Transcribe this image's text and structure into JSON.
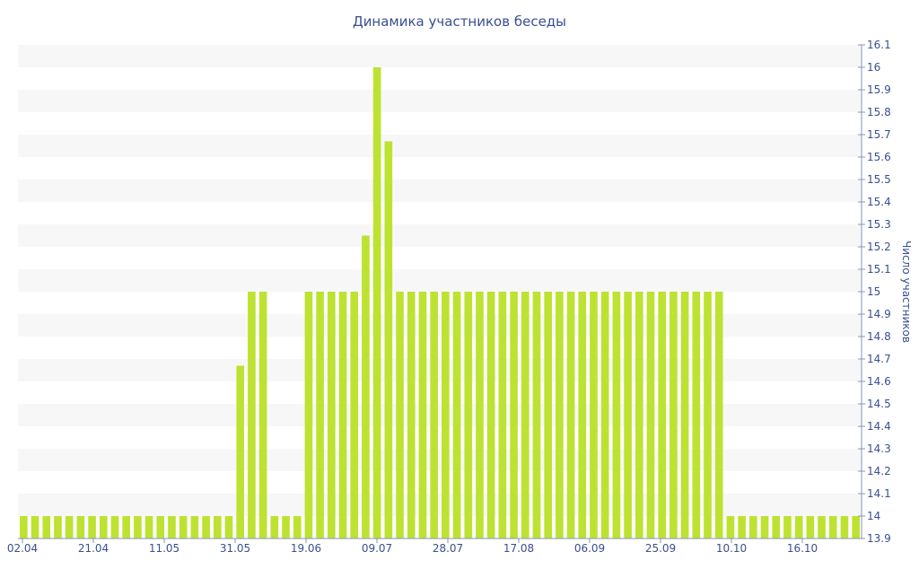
{
  "chart_data": {
    "type": "bar",
    "title": "Динамика участников беседы",
    "ylabel": "Число участников",
    "xlabel": "",
    "ylim": [
      13.9,
      16.1
    ],
    "yticks": [
      "13.9",
      "14",
      "14.1",
      "14.2",
      "14.3",
      "14.4",
      "14.5",
      "14.6",
      "14.7",
      "14.8",
      "14.9",
      "15",
      "15.1",
      "15.2",
      "15.3",
      "15.4",
      "15.5",
      "15.6",
      "15.7",
      "15.8",
      "15.9",
      "16",
      "16.1"
    ],
    "xticks": [
      "02.04",
      "21.04",
      "11.05",
      "31.05",
      "19.06",
      "09.07",
      "28.07",
      "17.08",
      "06.09",
      "25.09",
      "10.10",
      "16.10"
    ],
    "y_axis_position": "right",
    "grid": "horizontal bands",
    "values": [
      14,
      14,
      14,
      14,
      14,
      14,
      14,
      14,
      14,
      14,
      14,
      14,
      14,
      14,
      14,
      14,
      14,
      14,
      14,
      14.67,
      15,
      15,
      14,
      14,
      14,
      15,
      15,
      15,
      15,
      15,
      15.25,
      16,
      15.67,
      15,
      15,
      15,
      15,
      15,
      15,
      15,
      15,
      15,
      15,
      15,
      15,
      15,
      15,
      15,
      15,
      15,
      15,
      15,
      15,
      15,
      15,
      15,
      15,
      15,
      15,
      15,
      15,
      15,
      14,
      14,
      14,
      14,
      14,
      14,
      14,
      14,
      14,
      14,
      14,
      14
    ],
    "colors": {
      "bar": "#bde232",
      "text": "#3a4f8f",
      "band": "#f7f7f7",
      "axis": "#8a94b5"
    }
  }
}
